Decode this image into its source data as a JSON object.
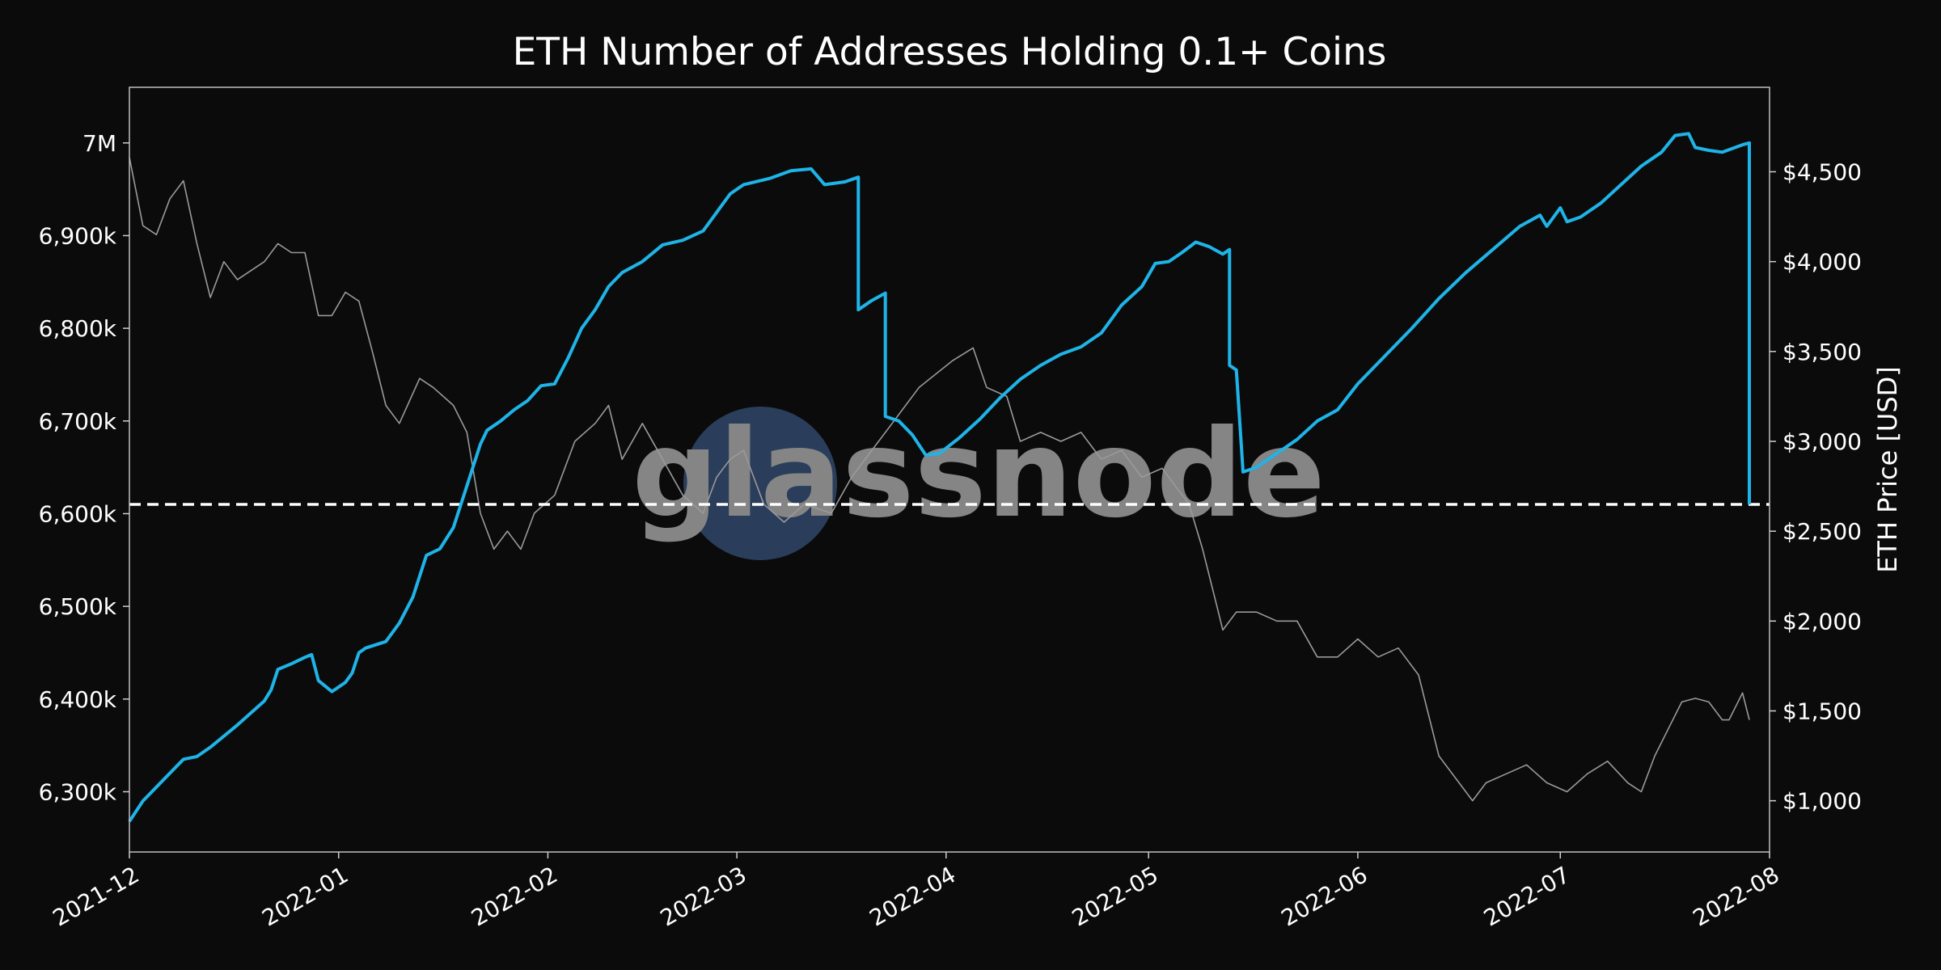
{
  "chart_data": {
    "type": "line",
    "title": "ETH Number of Addresses Holding 0.1+ Coins",
    "xlabel": "",
    "ylabel_left": "",
    "ylabel_right": "ETH Price [USD]",
    "x_ticks": [
      "2021-12",
      "2022-01",
      "2022-02",
      "2022-03",
      "2022-04",
      "2022-05",
      "2022-06",
      "2022-07",
      "2022-08"
    ],
    "y_left_ticks": [
      {
        "value": 7000000,
        "label": "7M"
      },
      {
        "value": 6900000,
        "label": "6,900k"
      },
      {
        "value": 6800000,
        "label": "6,800k"
      },
      {
        "value": 6700000,
        "label": "6,700k"
      },
      {
        "value": 6600000,
        "label": "6,600k"
      },
      {
        "value": 6500000,
        "label": "6,500k"
      },
      {
        "value": 6400000,
        "label": "6,400k"
      },
      {
        "value": 6300000,
        "label": "6,300k"
      }
    ],
    "y_right_ticks": [
      {
        "value": 4500,
        "label": "$4,500"
      },
      {
        "value": 4000,
        "label": "$4,000"
      },
      {
        "value": 3500,
        "label": "$3,500"
      },
      {
        "value": 3000,
        "label": "$3,000"
      },
      {
        "value": 2500,
        "label": "$2,500"
      },
      {
        "value": 2000,
        "label": "$2,000"
      },
      {
        "value": 1500,
        "label": "$1,500"
      },
      {
        "value": 1000,
        "label": "$1,000"
      }
    ],
    "x_range": [
      "2021-12-01",
      "2022-08-01"
    ],
    "ylim_left": [
      6235000,
      7060000
    ],
    "ylim_right": [
      715,
      4970
    ],
    "grid": false,
    "watermark": "glassnode",
    "reference_line": {
      "value": 6610000,
      "axis": "left",
      "style": "dashed",
      "color": "#ffffff"
    },
    "series": [
      {
        "axis": "left",
        "color": "#1fb4e8",
        "points": [
          [
            "2021-12-01",
            6268000
          ],
          [
            "2021-12-03",
            6290000
          ],
          [
            "2021-12-05",
            6305000
          ],
          [
            "2021-12-07",
            6320000
          ],
          [
            "2021-12-09",
            6335000
          ],
          [
            "2021-12-11",
            6338000
          ],
          [
            "2021-12-13",
            6348000
          ],
          [
            "2021-12-15",
            6360000
          ],
          [
            "2021-12-17",
            6372000
          ],
          [
            "2021-12-19",
            6385000
          ],
          [
            "2021-12-21",
            6398000
          ],
          [
            "2021-12-22",
            6410000
          ],
          [
            "2021-12-23",
            6432000
          ],
          [
            "2021-12-25",
            6438000
          ],
          [
            "2021-12-27",
            6445000
          ],
          [
            "2021-12-28",
            6448000
          ],
          [
            "2021-12-29",
            6420000
          ],
          [
            "2021-12-31",
            6408000
          ],
          [
            "2022-01-02",
            6418000
          ],
          [
            "2022-01-03",
            6428000
          ],
          [
            "2022-01-04",
            6450000
          ],
          [
            "2022-01-05",
            6455000
          ],
          [
            "2022-01-08",
            6462000
          ],
          [
            "2022-01-10",
            6482000
          ],
          [
            "2022-01-12",
            6510000
          ],
          [
            "2022-01-14",
            6555000
          ],
          [
            "2022-01-16",
            6562000
          ],
          [
            "2022-01-18",
            6585000
          ],
          [
            "2022-01-20",
            6630000
          ],
          [
            "2022-01-22",
            6675000
          ],
          [
            "2022-01-23",
            6690000
          ],
          [
            "2022-01-25",
            6700000
          ],
          [
            "2022-01-27",
            6712000
          ],
          [
            "2022-01-29",
            6722000
          ],
          [
            "2022-01-31",
            6738000
          ],
          [
            "2022-02-02",
            6740000
          ],
          [
            "2022-02-04",
            6768000
          ],
          [
            "2022-02-06",
            6800000
          ],
          [
            "2022-02-08",
            6820000
          ],
          [
            "2022-02-10",
            6845000
          ],
          [
            "2022-02-12",
            6860000
          ],
          [
            "2022-02-15",
            6872000
          ],
          [
            "2022-02-18",
            6890000
          ],
          [
            "2022-02-21",
            6895000
          ],
          [
            "2022-02-24",
            6905000
          ],
          [
            "2022-02-26",
            6925000
          ],
          [
            "2022-02-28",
            6945000
          ],
          [
            "2022-03-02",
            6955000
          ],
          [
            "2022-03-06",
            6962000
          ],
          [
            "2022-03-09",
            6970000
          ],
          [
            "2022-03-12",
            6972000
          ],
          [
            "2022-03-14",
            6955000
          ],
          [
            "2022-03-17",
            6958000
          ],
          [
            "2022-03-19",
            6963000
          ],
          [
            "2022-03-19",
            6820000
          ],
          [
            "2022-03-21",
            6830000
          ],
          [
            "2022-03-23",
            6838000
          ],
          [
            "2022-03-23",
            6705000
          ],
          [
            "2022-03-25",
            6700000
          ],
          [
            "2022-03-27",
            6685000
          ],
          [
            "2022-03-29",
            6663000
          ],
          [
            "2022-03-31",
            6665000
          ],
          [
            "2022-04-03",
            6682000
          ],
          [
            "2022-04-06",
            6702000
          ],
          [
            "2022-04-09",
            6725000
          ],
          [
            "2022-04-12",
            6745000
          ],
          [
            "2022-04-15",
            6760000
          ],
          [
            "2022-04-18",
            6772000
          ],
          [
            "2022-04-21",
            6780000
          ],
          [
            "2022-04-24",
            6795000
          ],
          [
            "2022-04-27",
            6825000
          ],
          [
            "2022-04-30",
            6845000
          ],
          [
            "2022-05-02",
            6870000
          ],
          [
            "2022-05-04",
            6872000
          ],
          [
            "2022-05-06",
            6882000
          ],
          [
            "2022-05-08",
            6893000
          ],
          [
            "2022-05-10",
            6888000
          ],
          [
            "2022-05-12",
            6880000
          ],
          [
            "2022-05-13",
            6885000
          ],
          [
            "2022-05-13",
            6760000
          ],
          [
            "2022-05-14",
            6755000
          ],
          [
            "2022-05-15",
            6645000
          ],
          [
            "2022-05-17",
            6650000
          ],
          [
            "2022-05-20",
            6665000
          ],
          [
            "2022-05-23",
            6680000
          ],
          [
            "2022-05-26",
            6700000
          ],
          [
            "2022-05-29",
            6712000
          ],
          [
            "2022-06-01",
            6740000
          ],
          [
            "2022-06-05",
            6770000
          ],
          [
            "2022-06-09",
            6800000
          ],
          [
            "2022-06-13",
            6832000
          ],
          [
            "2022-06-17",
            6860000
          ],
          [
            "2022-06-21",
            6885000
          ],
          [
            "2022-06-25",
            6910000
          ],
          [
            "2022-06-28",
            6922000
          ],
          [
            "2022-06-29",
            6910000
          ],
          [
            "2022-07-01",
            6930000
          ],
          [
            "2022-07-02",
            6915000
          ],
          [
            "2022-07-04",
            6920000
          ],
          [
            "2022-07-07",
            6935000
          ],
          [
            "2022-07-10",
            6955000
          ],
          [
            "2022-07-13",
            6975000
          ],
          [
            "2022-07-16",
            6990000
          ],
          [
            "2022-07-18",
            7008000
          ],
          [
            "2022-07-20",
            7010000
          ],
          [
            "2022-07-21",
            6995000
          ],
          [
            "2022-07-23",
            6992000
          ],
          [
            "2022-07-25",
            6990000
          ],
          [
            "2022-07-28",
            6998000
          ],
          [
            "2022-07-29",
            7000000
          ],
          [
            "2022-07-29",
            6610000
          ]
        ]
      },
      {
        "axis": "right",
        "color": "#9a9a9a",
        "points": [
          [
            "2021-12-01",
            4580
          ],
          [
            "2021-12-03",
            4200
          ],
          [
            "2021-12-05",
            4150
          ],
          [
            "2021-12-07",
            4350
          ],
          [
            "2021-12-09",
            4450
          ],
          [
            "2021-12-11",
            4100
          ],
          [
            "2021-12-13",
            3800
          ],
          [
            "2021-12-15",
            4000
          ],
          [
            "2021-12-17",
            3900
          ],
          [
            "2021-12-19",
            3950
          ],
          [
            "2021-12-21",
            4000
          ],
          [
            "2021-12-23",
            4100
          ],
          [
            "2021-12-25",
            4050
          ],
          [
            "2021-12-27",
            4050
          ],
          [
            "2021-12-29",
            3700
          ],
          [
            "2021-12-31",
            3700
          ],
          [
            "2022-01-02",
            3830
          ],
          [
            "2022-01-04",
            3780
          ],
          [
            "2022-01-06",
            3500
          ],
          [
            "2022-01-08",
            3200
          ],
          [
            "2022-01-10",
            3100
          ],
          [
            "2022-01-13",
            3350
          ],
          [
            "2022-01-15",
            3300
          ],
          [
            "2022-01-18",
            3200
          ],
          [
            "2022-01-20",
            3050
          ],
          [
            "2022-01-22",
            2600
          ],
          [
            "2022-01-24",
            2400
          ],
          [
            "2022-01-26",
            2500
          ],
          [
            "2022-01-28",
            2400
          ],
          [
            "2022-01-30",
            2600
          ],
          [
            "2022-02-02",
            2700
          ],
          [
            "2022-02-05",
            3000
          ],
          [
            "2022-02-08",
            3100
          ],
          [
            "2022-02-10",
            3200
          ],
          [
            "2022-02-12",
            2900
          ],
          [
            "2022-02-15",
            3100
          ],
          [
            "2022-02-18",
            2900
          ],
          [
            "2022-02-21",
            2700
          ],
          [
            "2022-02-24",
            2600
          ],
          [
            "2022-02-26",
            2800
          ],
          [
            "2022-02-28",
            2900
          ],
          [
            "2022-03-02",
            2950
          ],
          [
            "2022-03-05",
            2650
          ],
          [
            "2022-03-08",
            2550
          ],
          [
            "2022-03-11",
            2650
          ],
          [
            "2022-03-15",
            2600
          ],
          [
            "2022-03-18",
            2800
          ],
          [
            "2022-03-21",
            2950
          ],
          [
            "2022-03-24",
            3100
          ],
          [
            "2022-03-28",
            3300
          ],
          [
            "2022-04-02",
            3450
          ],
          [
            "2022-04-05",
            3520
          ],
          [
            "2022-04-07",
            3300
          ],
          [
            "2022-04-10",
            3250
          ],
          [
            "2022-04-12",
            3000
          ],
          [
            "2022-04-15",
            3050
          ],
          [
            "2022-04-18",
            3000
          ],
          [
            "2022-04-21",
            3050
          ],
          [
            "2022-04-24",
            2900
          ],
          [
            "2022-04-27",
            2950
          ],
          [
            "2022-04-30",
            2800
          ],
          [
            "2022-05-03",
            2850
          ],
          [
            "2022-05-05",
            2750
          ],
          [
            "2022-05-07",
            2650
          ],
          [
            "2022-05-09",
            2400
          ],
          [
            "2022-05-11",
            2100
          ],
          [
            "2022-05-12",
            1950
          ],
          [
            "2022-05-14",
            2050
          ],
          [
            "2022-05-17",
            2050
          ],
          [
            "2022-05-20",
            2000
          ],
          [
            "2022-05-23",
            2000
          ],
          [
            "2022-05-26",
            1800
          ],
          [
            "2022-05-29",
            1800
          ],
          [
            "2022-06-01",
            1900
          ],
          [
            "2022-06-04",
            1800
          ],
          [
            "2022-06-07",
            1850
          ],
          [
            "2022-06-10",
            1700
          ],
          [
            "2022-06-13",
            1250
          ],
          [
            "2022-06-16",
            1100
          ],
          [
            "2022-06-18",
            1000
          ],
          [
            "2022-06-20",
            1100
          ],
          [
            "2022-06-23",
            1150
          ],
          [
            "2022-06-26",
            1200
          ],
          [
            "2022-06-29",
            1100
          ],
          [
            "2022-07-02",
            1050
          ],
          [
            "2022-07-05",
            1150
          ],
          [
            "2022-07-08",
            1220
          ],
          [
            "2022-07-11",
            1100
          ],
          [
            "2022-07-13",
            1050
          ],
          [
            "2022-07-15",
            1250
          ],
          [
            "2022-07-17",
            1400
          ],
          [
            "2022-07-19",
            1550
          ],
          [
            "2022-07-21",
            1570
          ],
          [
            "2022-07-23",
            1550
          ],
          [
            "2022-07-25",
            1450
          ],
          [
            "2022-07-26",
            1450
          ],
          [
            "2022-07-28",
            1600
          ],
          [
            "2022-07-29",
            1450
          ]
        ]
      }
    ]
  }
}
